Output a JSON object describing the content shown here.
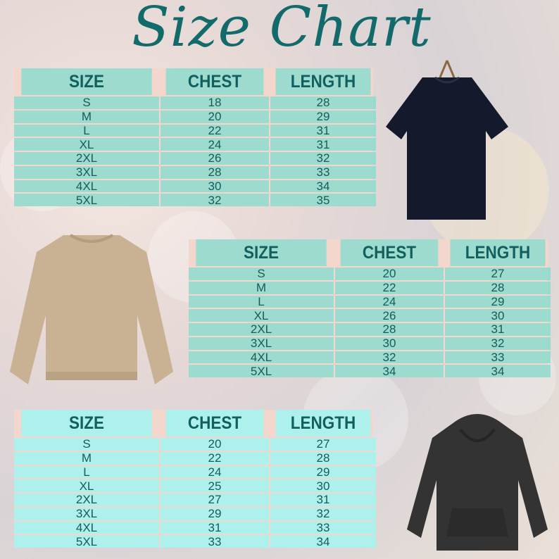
{
  "title": "Size Chart",
  "colors": {
    "title": "#136a6a",
    "table_cell": "#8cdccd",
    "table_border": "#f3d6cc",
    "text": "#155c5c"
  },
  "tables": [
    {
      "garment": "t-shirt",
      "headers": [
        "SIZE",
        "CHEST",
        "LENGTH"
      ],
      "rows": [
        [
          "S",
          "18",
          "28"
        ],
        [
          "M",
          "20",
          "29"
        ],
        [
          "L",
          "22",
          "31"
        ],
        [
          "XL",
          "24",
          "31"
        ],
        [
          "2XL",
          "26",
          "32"
        ],
        [
          "3XL",
          "28",
          "33"
        ],
        [
          "4XL",
          "30",
          "34"
        ],
        [
          "5XL",
          "32",
          "35"
        ]
      ]
    },
    {
      "garment": "sweatshirt",
      "headers": [
        "SIZE",
        "CHEST",
        "LENGTH"
      ],
      "rows": [
        [
          "S",
          "20",
          "27"
        ],
        [
          "M",
          "22",
          "28"
        ],
        [
          "L",
          "24",
          "29"
        ],
        [
          "XL",
          "26",
          "30"
        ],
        [
          "2XL",
          "28",
          "31"
        ],
        [
          "3XL",
          "30",
          "32"
        ],
        [
          "4XL",
          "32",
          "33"
        ],
        [
          "5XL",
          "34",
          "34"
        ]
      ]
    },
    {
      "garment": "hoodie",
      "headers": [
        "SIZE",
        "CHEST",
        "LENGTH"
      ],
      "rows": [
        [
          "S",
          "20",
          "27"
        ],
        [
          "M",
          "22",
          "28"
        ],
        [
          "L",
          "24",
          "29"
        ],
        [
          "XL",
          "25",
          "30"
        ],
        [
          "2XL",
          "27",
          "31"
        ],
        [
          "3XL",
          "29",
          "32"
        ],
        [
          "4XL",
          "31",
          "33"
        ],
        [
          "5XL",
          "33",
          "34"
        ]
      ]
    }
  ]
}
